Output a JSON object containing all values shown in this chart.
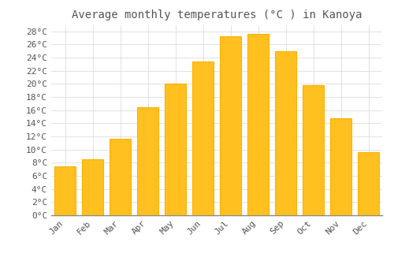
{
  "title": "Average monthly temperatures (°C ) in Kanoya",
  "months": [
    "Jan",
    "Feb",
    "Mar",
    "Apr",
    "May",
    "Jun",
    "Jul",
    "Aug",
    "Sep",
    "Oct",
    "Nov",
    "Dec"
  ],
  "temperatures": [
    7.4,
    8.5,
    11.6,
    16.4,
    20.0,
    23.4,
    27.2,
    27.6,
    25.0,
    19.8,
    14.8,
    9.6
  ],
  "bar_color": "#FFC020",
  "bar_edge_color": "#FFB000",
  "background_color": "#FFFFFF",
  "plot_bg_color": "#FFFFFF",
  "grid_color": "#DDDDDD",
  "text_color": "#555555",
  "ylim": [
    0,
    29
  ],
  "yticks": [
    0,
    2,
    4,
    6,
    8,
    10,
    12,
    14,
    16,
    18,
    20,
    22,
    24,
    26,
    28
  ],
  "title_fontsize": 10,
  "tick_fontsize": 8,
  "font_family": "monospace"
}
